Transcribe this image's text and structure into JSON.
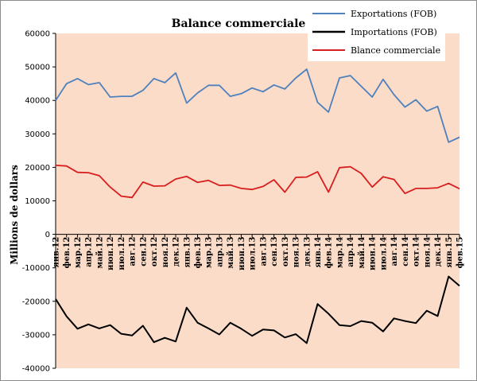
{
  "chart_data": {
    "type": "line",
    "title": "Balance commerciale",
    "ylabel": "Millions de dollars",
    "xlabel": "",
    "ylim": [
      -40000,
      60000
    ],
    "yticks": [
      60000,
      50000,
      40000,
      30000,
      20000,
      10000,
      0,
      -10000,
      -20000,
      -30000,
      -40000
    ],
    "legend_position": "top-right",
    "grid": false,
    "colors": {
      "plot_bg": "#fbdcc8",
      "frame": "#000000",
      "exports": "#4f81bd",
      "imports": "#000000",
      "balance": "#d81e1e"
    },
    "categories": [
      "янв.12",
      "фев.12",
      "мар.12",
      "апр.12",
      "май.12",
      "июн.12",
      "июл.12",
      "авг.12",
      "сен.12",
      "окт.12",
      "ноя.12",
      "дек.12",
      "янв.13",
      "фев.13",
      "мар.13",
      "апр.13",
      "май.13",
      "июн.13",
      "июл.13",
      "авг.13",
      "сен.13",
      "окт.13",
      "ноя.13",
      "дек.13",
      "янв.14",
      "фев.14",
      "мар.14",
      "апр.14",
      "май.14",
      "июн.14",
      "июл.14",
      "авг.14",
      "сен.14",
      "окт.14",
      "ноя.14",
      "дек.14",
      "янв.15",
      "фев.15"
    ],
    "series": [
      {
        "name": "Exportations (FOB)",
        "key": "exports",
        "values": [
          40000,
          45000,
          46500,
          44700,
          45300,
          41000,
          41200,
          41200,
          43000,
          46500,
          45300,
          48200,
          39200,
          42200,
          44500,
          44500,
          41200,
          42000,
          43700,
          42600,
          44600,
          43400,
          46700,
          49300,
          39400,
          36500,
          46700,
          47400,
          44200,
          41000,
          46300,
          41700,
          38000,
          40200,
          36800,
          38200,
          27500,
          29000
        ]
      },
      {
        "name": "Importations (FOB)",
        "key": "imports",
        "values": [
          -19300,
          -24500,
          -28200,
          -26900,
          -28100,
          -27100,
          -29700,
          -30200,
          -27300,
          -32200,
          -30900,
          -32000,
          -21900,
          -26400,
          -28100,
          -29900,
          -26400,
          -28200,
          -30300,
          -28400,
          -28700,
          -30800,
          -29800,
          -32500,
          -20800,
          -23700,
          -27100,
          -27400,
          -25900,
          -26400,
          -29000,
          -25100,
          -25900,
          -26500,
          -22800,
          -24400,
          -12600,
          -15400
        ]
      },
      {
        "name": "Blance commerciale",
        "key": "balance",
        "values": [
          20600,
          20400,
          18500,
          18400,
          17500,
          14100,
          11400,
          11000,
          15600,
          14400,
          14500,
          16500,
          17300,
          15500,
          16100,
          14600,
          14700,
          13700,
          13400,
          14300,
          16300,
          12600,
          17000,
          17100,
          18700,
          12600,
          19900,
          20200,
          18200,
          14100,
          17200,
          16400,
          12200,
          13700,
          13700,
          13900,
          15200,
          13600
        ]
      }
    ]
  }
}
